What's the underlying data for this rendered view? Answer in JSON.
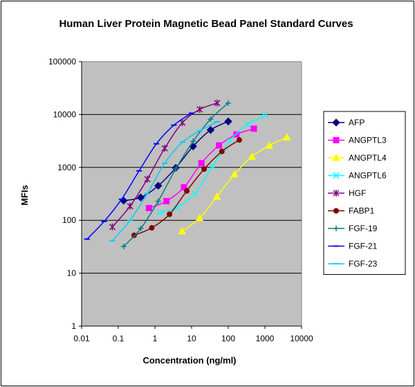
{
  "chart_data": {
    "type": "scatter",
    "title": "Human Liver Protein Magnetic Bead Panel Standard Curves",
    "xlabel": "Concentration (ng/ml)",
    "ylabel": "MFIs",
    "x_scale": "log",
    "y_scale": "log",
    "xlim": [
      0.01,
      10000
    ],
    "ylim": [
      1,
      100000
    ],
    "x_ticks": [
      "0.01",
      "0.1",
      "1",
      "10",
      "100",
      "1000",
      "10000"
    ],
    "y_ticks": [
      "1",
      "10",
      "100",
      "1000",
      "10000",
      "100000"
    ],
    "grid": "horizontal major",
    "plot_background": "#c0c0c0",
    "legend_position": "right",
    "series": [
      {
        "name": "AFP",
        "color": "#000080",
        "marker": "diamond",
        "x": [
          0.14,
          0.41,
          1.23,
          3.7,
          11,
          33,
          100
        ],
        "y": [
          235,
          270,
          450,
          980,
          2500,
          5100,
          7400
        ]
      },
      {
        "name": "ANGPTL3",
        "color": "#ff00ff",
        "marker": "square",
        "x": [
          0.69,
          2.06,
          6.2,
          18.5,
          56,
          167,
          500
        ],
        "y": [
          170,
          230,
          420,
          1200,
          2600,
          4200,
          5400
        ]
      },
      {
        "name": "ANGPTL4",
        "color": "#ffff00",
        "marker": "triangle",
        "x": [
          5.5,
          16.5,
          49,
          148,
          444,
          1333,
          4000
        ],
        "y": [
          62,
          110,
          280,
          740,
          1600,
          2600,
          3700
        ]
      },
      {
        "name": "ANGPTL6",
        "color": "#00ffff",
        "marker": "x",
        "x": [
          1.4,
          4.1,
          12.3,
          37,
          111,
          333,
          1000
        ],
        "y": [
          140,
          175,
          320,
          1050,
          3200,
          6500,
          9500
        ]
      },
      {
        "name": "HGF",
        "color": "#800080",
        "marker": "star",
        "x": [
          0.069,
          0.21,
          0.62,
          1.85,
          5.6,
          16.7,
          50
        ],
        "y": [
          75,
          185,
          600,
          2300,
          7000,
          12500,
          16500
        ]
      },
      {
        "name": "FABP1",
        "color": "#800000",
        "marker": "circle",
        "x": [
          0.27,
          0.82,
          2.5,
          7.4,
          22,
          67,
          200
        ],
        "y": [
          52,
          72,
          130,
          360,
          930,
          2000,
          3300
        ]
      },
      {
        "name": "FGF-19",
        "color": "#008080",
        "marker": "plus",
        "x": [
          0.14,
          0.41,
          1.23,
          3.7,
          11,
          33,
          100
        ],
        "y": [
          32,
          70,
          230,
          940,
          3100,
          8200,
          16500
        ]
      },
      {
        "name": "FGF-21",
        "color": "#0000ff",
        "marker": "dash",
        "x": [
          0.014,
          0.041,
          0.123,
          0.37,
          1.1,
          3.3,
          10
        ],
        "y": [
          44,
          95,
          250,
          860,
          2800,
          6300,
          10600
        ]
      },
      {
        "name": "FGF-23",
        "color": "#00ccff",
        "marker": "dash",
        "x": [
          0.069,
          0.21,
          0.62,
          1.85,
          5.6,
          16.7,
          50
        ],
        "y": [
          41,
          100,
          320,
          1200,
          3000,
          4900,
          7300
        ]
      }
    ]
  }
}
